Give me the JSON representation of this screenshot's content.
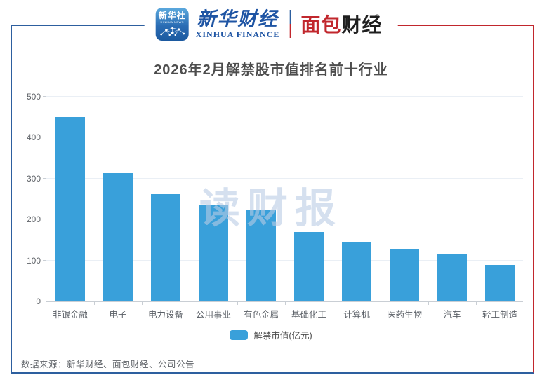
{
  "header": {
    "xinhua_app": {
      "line1": "新华社",
      "line2": "XINHUA NEWS"
    },
    "xinhua_finance": {
      "cn": "新华财经",
      "en": "XINHUA FINANCE"
    },
    "bread_finance": {
      "cn_red": "面包",
      "cn_dark": "财经",
      "reg": "®"
    }
  },
  "title": "2026年2月解禁股市值排名前十行业",
  "watermark": "读财报",
  "legend_label": "解禁市值(亿元)",
  "footer_source": "数据来源：新华财经、面包财经、公司公告",
  "colors": {
    "bar": "#39a0da",
    "frame_blue": "#2d5f9f",
    "frame_red": "#c1272d",
    "grid": "#eaeff5",
    "axis": "#c9ced4"
  },
  "chart_data": {
    "type": "bar",
    "title": "2026年2月解禁股市值排名前十行业",
    "categories": [
      "非银金融",
      "电子",
      "电力设备",
      "公用事业",
      "有色金属",
      "基础化工",
      "计算机",
      "医药生物",
      "汽车",
      "轻工制造"
    ],
    "values": [
      450,
      313,
      262,
      237,
      224,
      170,
      146,
      129,
      116,
      89
    ],
    "series_name": "解禁市值(亿元)",
    "xlabel": "",
    "ylabel": "",
    "ylim": [
      0,
      500
    ],
    "yticks": [
      0,
      100,
      200,
      300,
      400,
      500
    ],
    "grid": true,
    "legend_position": "bottom",
    "bar_color": "#39a0da"
  }
}
